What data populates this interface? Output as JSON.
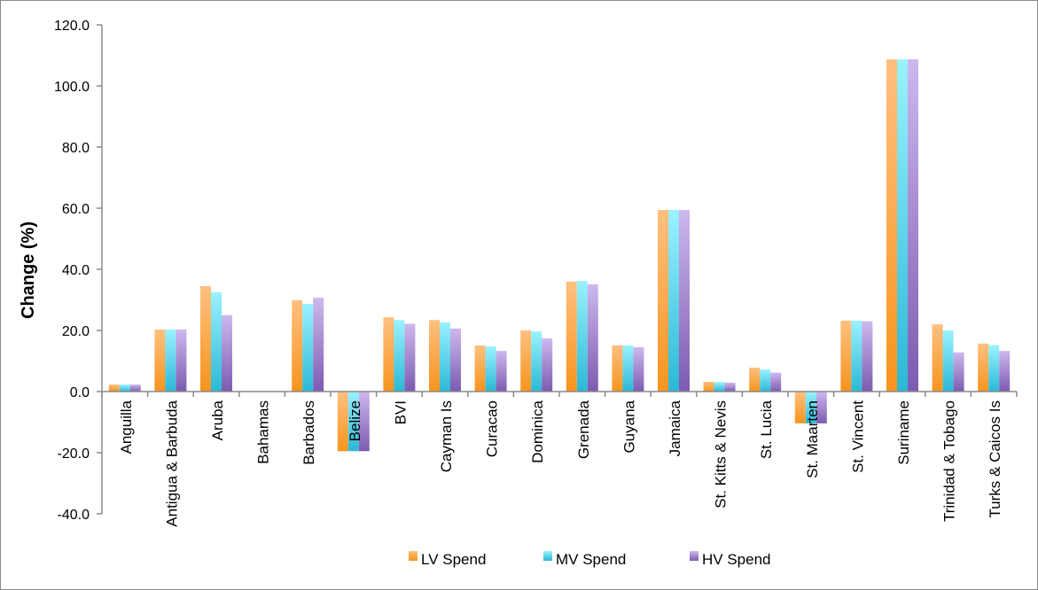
{
  "chart_data": {
    "type": "bar",
    "title": "",
    "xlabel": "",
    "ylabel": "Change (%)",
    "ylim": [
      -40,
      120
    ],
    "yticks": [
      "-40.0",
      "-20.0",
      "0.0",
      "20.0",
      "40.0",
      "60.0",
      "80.0",
      "100.0",
      "120.0"
    ],
    "ytick_values": [
      -40,
      -20,
      0,
      20,
      40,
      60,
      80,
      100,
      120
    ],
    "grid": false,
    "legend_position": "bottom",
    "categories": [
      "Anguilla",
      "Antigua & Barbuda",
      "Aruba",
      "Bahamas",
      "Barbados",
      "Belize",
      "BVI",
      "Cayman Is",
      "Curacao",
      "Dominica",
      "Grenada",
      "Guyana",
      "Jamaica",
      "St. Kitts & Nevis",
      "St. Lucia",
      "St. Maarten",
      "St. Vincent",
      "Suriname",
      "Trinidad & Tobago",
      "Turks & Caicos Is"
    ],
    "series": [
      {
        "name": "LV Spend",
        "color": "#f7941d",
        "light": "#ffc080",
        "values": [
          2.3,
          20.3,
          34.5,
          0,
          29.9,
          -19.5,
          24.3,
          23.4,
          15.1,
          20.0,
          36.0,
          15.1,
          59.4,
          3.2,
          7.8,
          -10.4,
          23.2,
          108.7,
          22.0,
          15.7
        ]
      },
      {
        "name": "MV Spend",
        "color": "#2bb8d6",
        "light": "#9af2ff",
        "values": [
          2.3,
          20.3,
          32.5,
          0,
          28.7,
          -19.5,
          23.4,
          22.6,
          14.8,
          19.7,
          36.2,
          15.1,
          59.4,
          3.1,
          7.2,
          -10.4,
          23.2,
          108.7,
          20.0,
          15.2
        ]
      },
      {
        "name": "HV Spend",
        "color": "#7c5bb0",
        "light": "#cdb8ee",
        "values": [
          2.3,
          20.3,
          25.0,
          0,
          30.7,
          -19.5,
          22.2,
          20.6,
          13.3,
          17.4,
          35.1,
          14.5,
          59.4,
          2.9,
          6.2,
          -10.4,
          23.0,
          108.7,
          12.8,
          13.3
        ]
      }
    ]
  }
}
